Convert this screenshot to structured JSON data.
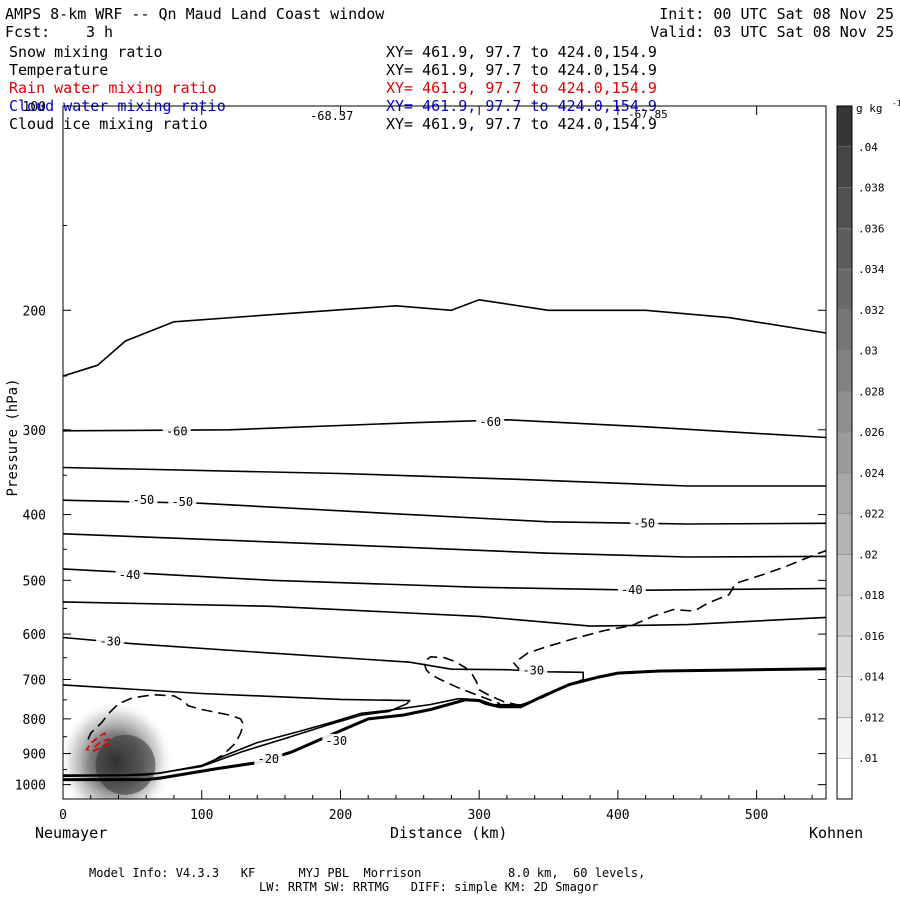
{
  "header": {
    "title": "AMPS 8-km WRF -- Qn Maud Land Coast window",
    "fcst_label": "Fcst:",
    "fcst_value": "3 h",
    "init": "Init: 00 UTC Sat 08 Nov 25",
    "valid": "Valid: 03 UTC Sat 08 Nov 25"
  },
  "fields": [
    {
      "name": "Snow mixing ratio",
      "xy": "XY= 461.9, 97.7 to 424.0,154.9",
      "color": "#000000"
    },
    {
      "name": "Temperature",
      "xy": "XY= 461.9, 97.7 to 424.0,154.9",
      "color": "#000000"
    },
    {
      "name": "Rain water mixing ratio",
      "xy": "XY= 461.9, 97.7 to 424.0,154.9",
      "color": "#e00000"
    },
    {
      "name": "Cloud water mixing ratio",
      "xy": "XY= 461.9, 97.7 to 424.0,154.9",
      "color": "#0000cc"
    },
    {
      "name": "Cloud ice mixing ratio",
      "xy": "XY= 461.9, 97.7 to 424.0,154.9",
      "color": "#000000"
    }
  ],
  "footer": {
    "line1": "Model Info: V4.3.3   KF      MYJ PBL  Morrison            8.0 km,  60 levels,",
    "line2": "LW: RRTM SW: RRTMG   DIFF: simple KM: 2D Smagor"
  },
  "chart_data": {
    "type": "contour",
    "title": "AMPS 8-km WRF -- Qn Maud Land Coast window",
    "xlabel": "Distance (km)",
    "ylabel": "Pressure (hPa)",
    "xlim": [
      0,
      550
    ],
    "ylim": [
      1050,
      100
    ],
    "x_ticks": [
      0,
      100,
      200,
      300,
      400,
      500
    ],
    "y_ticks": [
      200,
      300,
      400,
      500,
      600,
      700,
      800,
      900,
      1000
    ],
    "y_tick_labels": [
      "200",
      "300",
      "400",
      "500",
      "600",
      "700",
      "800",
      "900",
      "1000"
    ],
    "y_top_label": "100",
    "left_location": "Neumayer",
    "right_location": "Kohnen",
    "colorbar": {
      "units": "g kg",
      "units_exp": "-1",
      "levels": [
        0.01,
        0.012,
        0.014,
        0.016,
        0.018,
        0.02,
        0.022,
        0.024,
        0.026,
        0.028,
        0.03,
        0.032,
        0.034,
        0.036,
        0.038,
        0.04
      ],
      "labels": [
        ".01",
        ".012",
        ".014",
        ".016",
        ".018",
        ".02",
        ".022",
        ".024",
        ".026",
        ".028",
        ".03",
        ".032",
        ".034",
        ".036",
        ".038",
        ".04"
      ]
    },
    "extreme_labels": [
      "-68.37",
      "-67.85"
    ],
    "temperature_labels": [
      {
        "text": "-60",
        "x": 82,
        "p": 302
      },
      {
        "text": "-60",
        "x": 308,
        "p": 292
      },
      {
        "text": "-50",
        "x": 58,
        "p": 381
      },
      {
        "text": "-50",
        "x": 86,
        "p": 383
      },
      {
        "text": "-50",
        "x": 419,
        "p": 412
      },
      {
        "text": "-40",
        "x": 48,
        "p": 491
      },
      {
        "text": "-40",
        "x": 410,
        "p": 517
      },
      {
        "text": "-30",
        "x": 34,
        "p": 615
      },
      {
        "text": "-30",
        "x": 339,
        "p": 679
      },
      {
        "text": "-30",
        "x": 197,
        "p": 862
      },
      {
        "text": "-20",
        "x": 148,
        "p": 916
      }
    ],
    "isotherms": [
      {
        "level": "tropopause",
        "points": [
          [
            0,
            250
          ],
          [
            25,
            241
          ],
          [
            45,
            222
          ],
          [
            80,
            208
          ],
          [
            150,
            203
          ],
          [
            210,
            199
          ],
          [
            240,
            197
          ],
          [
            280,
            200
          ],
          [
            300,
            193
          ],
          [
            350,
            200
          ],
          [
            420,
            200
          ],
          [
            480,
            205
          ],
          [
            550,
            216
          ]
        ]
      },
      {
        "level": -60,
        "points": [
          [
            0,
            301
          ],
          [
            120,
            300
          ],
          [
            250,
            293
          ],
          [
            320,
            290
          ],
          [
            420,
            297
          ],
          [
            550,
            308
          ]
        ]
      },
      {
        "level": -55,
        "points": [
          [
            0,
            341
          ],
          [
            200,
            348
          ],
          [
            330,
            355
          ],
          [
            450,
            363
          ],
          [
            550,
            363
          ]
        ]
      },
      {
        "level": -50,
        "points": [
          [
            0,
            381
          ],
          [
            100,
            385
          ],
          [
            250,
            400
          ],
          [
            350,
            410
          ],
          [
            450,
            413
          ],
          [
            550,
            412
          ]
        ]
      },
      {
        "level": -45,
        "points": [
          [
            0,
            427
          ],
          [
            200,
            443
          ],
          [
            350,
            456
          ],
          [
            450,
            462
          ],
          [
            550,
            461
          ]
        ]
      },
      {
        "level": -40,
        "points": [
          [
            0,
            481
          ],
          [
            150,
            500
          ],
          [
            300,
            512
          ],
          [
            420,
            517
          ],
          [
            550,
            514
          ]
        ]
      },
      {
        "level": -35,
        "points": [
          [
            0,
            538
          ],
          [
            150,
            546
          ],
          [
            300,
            565
          ],
          [
            380,
            584
          ],
          [
            450,
            581
          ],
          [
            550,
            567
          ]
        ]
      },
      {
        "level": -30,
        "points": [
          [
            0,
            607
          ],
          [
            50,
            620
          ],
          [
            150,
            640
          ],
          [
            250,
            660
          ],
          [
            280,
            676
          ],
          [
            320,
            677
          ],
          [
            350,
            682
          ],
          [
            375,
            683
          ],
          [
            375,
            700
          ],
          [
            360,
            720
          ],
          [
            345,
            745
          ],
          [
            330,
            763
          ],
          [
            310,
            762
          ],
          [
            300,
            750
          ],
          [
            285,
            747
          ],
          [
            265,
            762
          ],
          [
            235,
            777
          ],
          [
            215,
            785
          ],
          [
            195,
            808
          ],
          [
            170,
            835
          ],
          [
            140,
            867
          ],
          [
            120,
            900
          ],
          [
            100,
            937
          ],
          [
            70,
            962
          ],
          [
            45,
            968
          ],
          [
            0,
            968
          ]
        ]
      },
      {
        "level": -25,
        "points": [
          [
            0,
            713
          ],
          [
            100,
            734
          ],
          [
            200,
            749
          ],
          [
            250,
            752
          ],
          [
            248,
            760
          ],
          [
            235,
            780
          ],
          [
            215,
            790
          ],
          [
            190,
            818
          ],
          [
            160,
            855
          ],
          [
            130,
            893
          ],
          [
            100,
            940
          ],
          [
            60,
            968
          ],
          [
            0,
            972
          ]
        ]
      }
    ]
  }
}
